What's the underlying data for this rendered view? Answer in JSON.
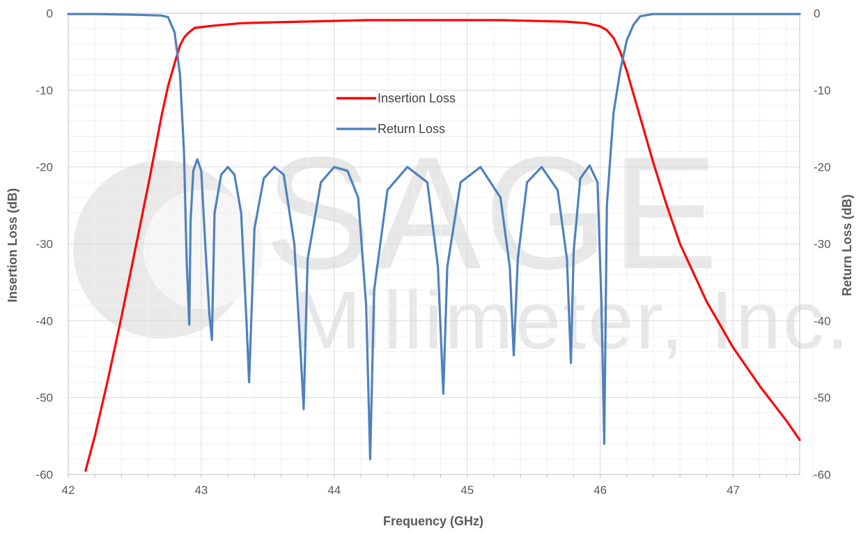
{
  "chart_data": {
    "type": "line",
    "xlabel": "Frequency (GHz)",
    "ylabel_left": "Insertion Loss (dB)",
    "ylabel_right": "Return Loss (dB)",
    "xlim": [
      42,
      47.5
    ],
    "ylim": [
      -60,
      0
    ],
    "x_ticks": [
      42,
      43,
      44,
      45,
      46,
      47
    ],
    "y_ticks": [
      0,
      -10,
      -20,
      -30,
      -40,
      -50,
      -60
    ],
    "grid": true,
    "legend_placement": "top-center",
    "watermark": {
      "line1": "SAGE",
      "line2": "Millimeter, Inc."
    },
    "series": [
      {
        "name": "Insertion Loss",
        "color": "#ff0000",
        "axis": "left",
        "x": [
          42.13,
          42.2,
          42.3,
          42.4,
          42.5,
          42.6,
          42.65,
          42.7,
          42.75,
          42.8,
          42.84,
          42.87,
          42.9,
          42.95,
          43.0,
          43.1,
          43.3,
          43.5,
          43.75,
          44.0,
          44.25,
          44.5,
          44.75,
          45.0,
          45.25,
          45.5,
          45.75,
          45.9,
          46.0,
          46.05,
          46.1,
          46.15,
          46.2,
          46.3,
          46.4,
          46.5,
          46.6,
          46.8,
          47.0,
          47.2,
          47.4,
          47.5
        ],
        "y": [
          -59.5,
          -55.0,
          -47.5,
          -39.5,
          -31.0,
          -22.5,
          -18.0,
          -13.5,
          -9.5,
          -6.5,
          -4.2,
          -3.2,
          -2.6,
          -1.9,
          -1.8,
          -1.6,
          -1.3,
          -1.2,
          -1.1,
          -1.0,
          -0.9,
          -0.9,
          -0.9,
          -0.9,
          -0.9,
          -1.0,
          -1.1,
          -1.3,
          -1.7,
          -2.2,
          -3.2,
          -5.0,
          -7.5,
          -13.5,
          -19.5,
          -25.0,
          -30.0,
          -37.5,
          -43.5,
          -48.5,
          -53.0,
          -55.5
        ]
      },
      {
        "name": "Return Loss",
        "color": "#4f81bd",
        "axis": "right",
        "x": [
          42.0,
          42.2,
          42.5,
          42.7,
          42.75,
          42.8,
          42.84,
          42.87,
          42.89,
          42.91,
          42.92,
          42.94,
          42.97,
          43.0,
          43.03,
          43.06,
          43.08,
          43.1,
          43.15,
          43.2,
          43.25,
          43.3,
          43.34,
          43.36,
          43.4,
          43.47,
          43.55,
          43.62,
          43.7,
          43.75,
          43.77,
          43.8,
          43.9,
          44.0,
          44.1,
          44.18,
          44.24,
          44.27,
          44.3,
          44.4,
          44.55,
          44.7,
          44.78,
          44.82,
          44.85,
          44.95,
          45.1,
          45.25,
          45.32,
          45.35,
          45.38,
          45.45,
          45.56,
          45.68,
          45.75,
          45.78,
          45.8,
          45.85,
          45.92,
          45.98,
          46.01,
          46.03,
          46.05,
          46.1,
          46.15,
          46.2,
          46.25,
          46.3,
          46.4,
          46.6,
          47.0,
          47.5
        ],
        "y": [
          -0.1,
          -0.1,
          -0.2,
          -0.3,
          -0.5,
          -2.5,
          -8.0,
          -18.0,
          -32.0,
          -40.5,
          -27.0,
          -20.5,
          -19.0,
          -20.5,
          -30.0,
          -39.0,
          -42.5,
          -26.0,
          -21.0,
          -20.0,
          -21.0,
          -26.0,
          -40.0,
          -48.0,
          -28.0,
          -21.5,
          -20.0,
          -21.0,
          -30.0,
          -45.0,
          -51.5,
          -32.0,
          -22.0,
          -20.0,
          -20.5,
          -24.0,
          -38.0,
          -58.0,
          -36.0,
          -23.0,
          -20.0,
          -22.0,
          -33.0,
          -49.5,
          -33.0,
          -22.0,
          -20.0,
          -24.0,
          -33.0,
          -44.5,
          -32.0,
          -22.0,
          -20.0,
          -23.0,
          -32.0,
          -45.5,
          -31.0,
          -21.5,
          -19.8,
          -22.0,
          -38.0,
          -56.0,
          -25.0,
          -13.0,
          -7.5,
          -3.5,
          -1.5,
          -0.4,
          -0.1,
          -0.1,
          -0.1,
          -0.1
        ]
      }
    ]
  }
}
